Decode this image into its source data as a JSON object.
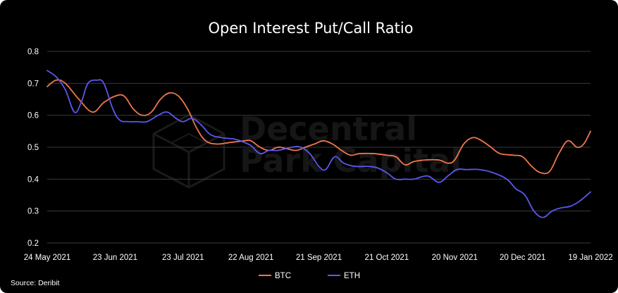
{
  "chart_data": {
    "type": "line",
    "title": "Open Interest Put/Call Ratio",
    "xlabel": "",
    "ylabel": "",
    "ylim": [
      0.2,
      0.8
    ],
    "yticks": [
      0.2,
      0.3,
      0.4,
      0.5,
      0.6,
      0.7,
      0.8
    ],
    "xlim": [
      "2021-05-24",
      "2022-01-19"
    ],
    "xtick_labels": [
      {
        "date": "2021-05-24",
        "label": "24 May 2021"
      },
      {
        "date": "2021-06-23",
        "label": "23 Jun 2021"
      },
      {
        "date": "2021-07-23",
        "label": "23 Jul 2021"
      },
      {
        "date": "2021-08-22",
        "label": "22 Aug 2021"
      },
      {
        "date": "2021-09-21",
        "label": "21 Sep 2021"
      },
      {
        "date": "2021-10-21",
        "label": "21 Oct 2021"
      },
      {
        "date": "2021-11-20",
        "label": "20 Nov 2021"
      },
      {
        "date": "2021-12-20",
        "label": "20 Dec 2021"
      },
      {
        "date": "2022-01-19",
        "label": "19 Jan 2022"
      }
    ],
    "grid": {
      "horizontal": true,
      "vertical": false
    },
    "legend_position": "bottom-center",
    "series": [
      {
        "name": "BTC",
        "color": "#f2764e",
        "points": [
          [
            "2021-05-24",
            0.69
          ],
          [
            "2021-05-28",
            0.71
          ],
          [
            "2021-06-01",
            0.7
          ],
          [
            "2021-06-07",
            0.65
          ],
          [
            "2021-06-13",
            0.61
          ],
          [
            "2021-06-18",
            0.64
          ],
          [
            "2021-06-23",
            0.66
          ],
          [
            "2021-06-27",
            0.66
          ],
          [
            "2021-07-01",
            0.62
          ],
          [
            "2021-07-05",
            0.6
          ],
          [
            "2021-07-09",
            0.61
          ],
          [
            "2021-07-13",
            0.65
          ],
          [
            "2021-07-17",
            0.67
          ],
          [
            "2021-07-21",
            0.66
          ],
          [
            "2021-07-25",
            0.62
          ],
          [
            "2021-07-29",
            0.56
          ],
          [
            "2021-08-02",
            0.52
          ],
          [
            "2021-08-07",
            0.51
          ],
          [
            "2021-08-13",
            0.515
          ],
          [
            "2021-08-19",
            0.52
          ],
          [
            "2021-08-22",
            0.52
          ],
          [
            "2021-08-26",
            0.5
          ],
          [
            "2021-08-30",
            0.49
          ],
          [
            "2021-09-03",
            0.5
          ],
          [
            "2021-09-07",
            0.495
          ],
          [
            "2021-09-11",
            0.49
          ],
          [
            "2021-09-15",
            0.5
          ],
          [
            "2021-09-19",
            0.51
          ],
          [
            "2021-09-23",
            0.52
          ],
          [
            "2021-09-27",
            0.51
          ],
          [
            "2021-10-01",
            0.49
          ],
          [
            "2021-10-05",
            0.475
          ],
          [
            "2021-10-09",
            0.48
          ],
          [
            "2021-10-15",
            0.48
          ],
          [
            "2021-10-21",
            0.475
          ],
          [
            "2021-10-25",
            0.47
          ],
          [
            "2021-10-29",
            0.445
          ],
          [
            "2021-11-02",
            0.455
          ],
          [
            "2021-11-07",
            0.46
          ],
          [
            "2021-11-13",
            0.46
          ],
          [
            "2021-11-17",
            0.45
          ],
          [
            "2021-11-20",
            0.46
          ],
          [
            "2021-11-24",
            0.51
          ],
          [
            "2021-11-28",
            0.53
          ],
          [
            "2021-12-02",
            0.52
          ],
          [
            "2021-12-06",
            0.5
          ],
          [
            "2021-12-10",
            0.48
          ],
          [
            "2021-12-16",
            0.475
          ],
          [
            "2021-12-20",
            0.47
          ],
          [
            "2021-12-24",
            0.44
          ],
          [
            "2021-12-28",
            0.42
          ],
          [
            "2022-01-01",
            0.425
          ],
          [
            "2022-01-05",
            0.48
          ],
          [
            "2022-01-09",
            0.52
          ],
          [
            "2022-01-13",
            0.5
          ],
          [
            "2022-01-16",
            0.51
          ],
          [
            "2022-01-19",
            0.55
          ]
        ]
      },
      {
        "name": "ETH",
        "color": "#5b58f0",
        "points": [
          [
            "2021-05-24",
            0.74
          ],
          [
            "2021-05-28",
            0.72
          ],
          [
            "2021-06-01",
            0.68
          ],
          [
            "2021-06-05",
            0.61
          ],
          [
            "2021-06-08",
            0.64
          ],
          [
            "2021-06-11",
            0.7
          ],
          [
            "2021-06-15",
            0.71
          ],
          [
            "2021-06-18",
            0.7
          ],
          [
            "2021-06-22",
            0.62
          ],
          [
            "2021-06-25",
            0.585
          ],
          [
            "2021-06-29",
            0.58
          ],
          [
            "2021-07-03",
            0.58
          ],
          [
            "2021-07-07",
            0.58
          ],
          [
            "2021-07-12",
            0.6
          ],
          [
            "2021-07-16",
            0.61
          ],
          [
            "2021-07-20",
            0.59
          ],
          [
            "2021-07-23",
            0.58
          ],
          [
            "2021-07-27",
            0.59
          ],
          [
            "2021-07-31",
            0.57
          ],
          [
            "2021-08-04",
            0.54
          ],
          [
            "2021-08-09",
            0.53
          ],
          [
            "2021-08-15",
            0.525
          ],
          [
            "2021-08-19",
            0.515
          ],
          [
            "2021-08-22",
            0.505
          ],
          [
            "2021-08-26",
            0.48
          ],
          [
            "2021-08-30",
            0.49
          ],
          [
            "2021-09-03",
            0.49
          ],
          [
            "2021-09-09",
            0.5
          ],
          [
            "2021-09-13",
            0.5
          ],
          [
            "2021-09-17",
            0.48
          ],
          [
            "2021-09-21",
            0.44
          ],
          [
            "2021-09-24",
            0.43
          ],
          [
            "2021-09-28",
            0.47
          ],
          [
            "2021-10-02",
            0.45
          ],
          [
            "2021-10-07",
            0.44
          ],
          [
            "2021-10-13",
            0.44
          ],
          [
            "2021-10-17",
            0.435
          ],
          [
            "2021-10-21",
            0.42
          ],
          [
            "2021-10-25",
            0.4
          ],
          [
            "2021-10-29",
            0.4
          ],
          [
            "2021-11-02",
            0.4
          ],
          [
            "2021-11-08",
            0.41
          ],
          [
            "2021-11-13",
            0.39
          ],
          [
            "2021-11-17",
            0.41
          ],
          [
            "2021-11-21",
            0.43
          ],
          [
            "2021-11-25",
            0.43
          ],
          [
            "2021-12-01",
            0.43
          ],
          [
            "2021-12-07",
            0.42
          ],
          [
            "2021-12-13",
            0.4
          ],
          [
            "2021-12-17",
            0.37
          ],
          [
            "2021-12-21",
            0.35
          ],
          [
            "2021-12-25",
            0.3
          ],
          [
            "2021-12-29",
            0.28
          ],
          [
            "2022-01-02",
            0.3
          ],
          [
            "2022-01-06",
            0.31
          ],
          [
            "2022-01-10",
            0.315
          ],
          [
            "2022-01-14",
            0.33
          ],
          [
            "2022-01-19",
            0.36
          ]
        ]
      }
    ],
    "source": "Source: Deribit"
  },
  "watermark": {
    "line1": "Decentral",
    "line2": "Park Capital",
    "icon": "cube-logo-icon"
  }
}
